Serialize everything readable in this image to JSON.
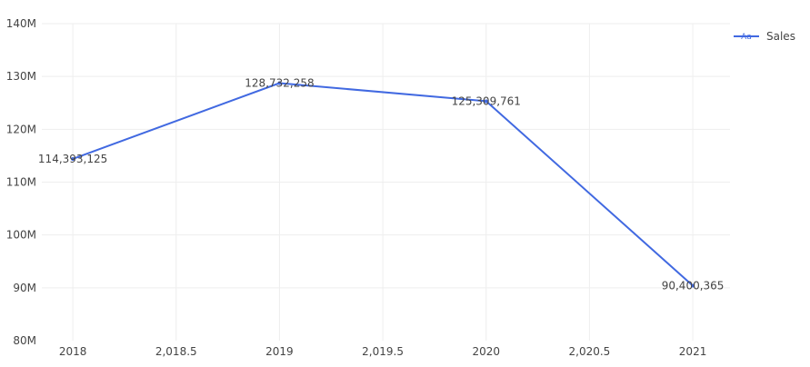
{
  "chart_data": {
    "type": "line",
    "x": [
      2018,
      2019,
      2020,
      2021
    ],
    "series": [
      {
        "name": "Sales",
        "values": [
          114393125,
          128732258,
          125309761,
          90400365
        ],
        "data_labels": [
          "114,393,125",
          "128,732,258",
          "125,309,761",
          "90,400,365"
        ],
        "color": "#4169e1"
      }
    ],
    "x_ticks": [
      2018,
      2018.5,
      2019,
      2019.5,
      2020,
      2020.5,
      2021
    ],
    "x_tick_labels": [
      "2018",
      "2,018.5",
      "2019",
      "2,019.5",
      "2020",
      "2,020.5",
      "2021"
    ],
    "y_ticks": [
      80000000,
      90000000,
      100000000,
      110000000,
      120000000,
      130000000,
      140000000
    ],
    "y_tick_labels": [
      "80M",
      "90M",
      "100M",
      "110M",
      "120M",
      "130M",
      "140M"
    ],
    "xlim": [
      2017.85,
      2021.18
    ],
    "ylim": [
      80000000,
      140000000
    ],
    "grid": true,
    "legend_position": "top-right",
    "legend_glyph": "Aa",
    "title": "",
    "xlabel": "",
    "ylabel": "",
    "colors": {
      "line": "#4169e1",
      "grid": "#eeeeee",
      "text": "#444444",
      "background": "#ffffff"
    }
  }
}
